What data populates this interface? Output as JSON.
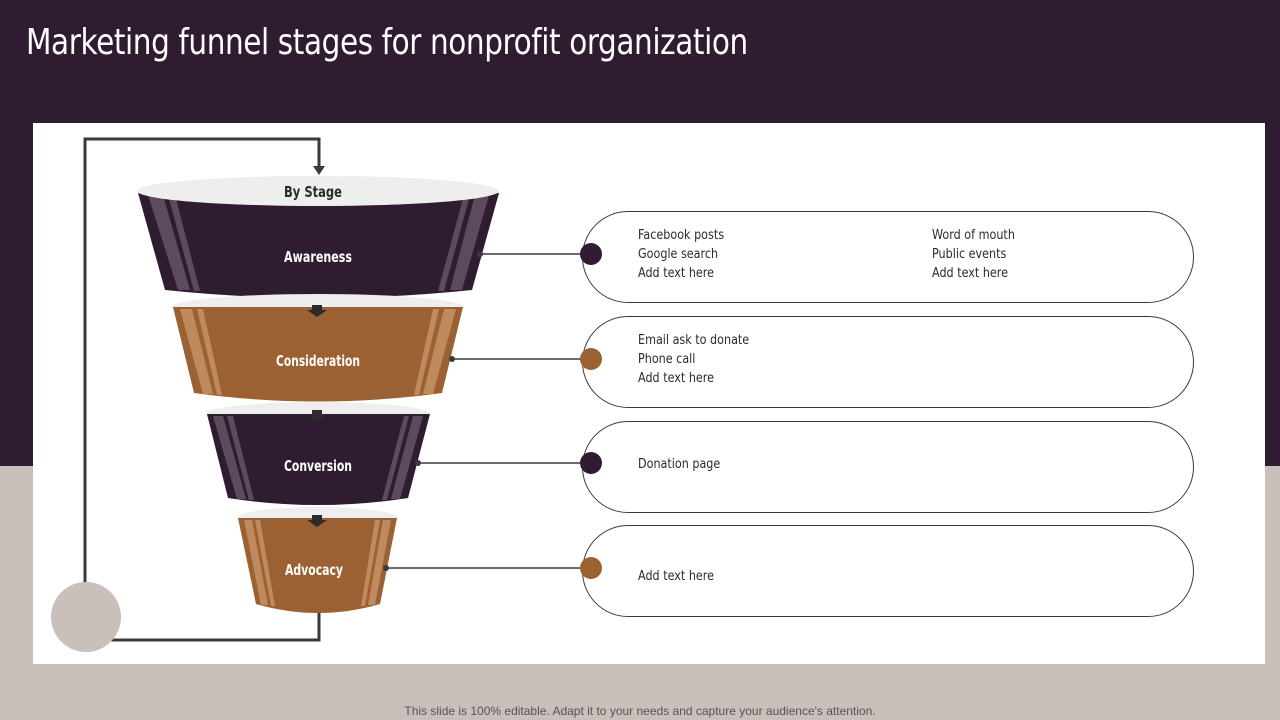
{
  "title": "Marketing funnel stages for nonprofit organization",
  "funnel": {
    "top_label": "By Stage",
    "stages": [
      {
        "label": "Awareness",
        "color": "#301c30",
        "items_left": [
          "Facebook posts",
          "Google search",
          "Add text here"
        ],
        "items_right": [
          "Word of mouth",
          "Public events",
          "Add text here"
        ]
      },
      {
        "label": "Consideration",
        "color": "#9b6132",
        "items_left": [
          "Email ask to donate",
          "Phone call",
          "Add text here"
        ],
        "items_right": []
      },
      {
        "label": "Conversion",
        "color": "#301c30",
        "items_left": [
          "Donation page"
        ],
        "items_right": []
      },
      {
        "label": "Advocacy",
        "color": "#9b6132",
        "items_left": [
          "Add text here"
        ],
        "items_right": []
      }
    ]
  },
  "footer": "This slide is 100% editable. Adapt it to your needs and capture your audience's attention.",
  "colors": {
    "dark": "#301c30",
    "brown": "#9b6132",
    "beige": "#c9bfbb",
    "rim": "#eeeeee"
  }
}
